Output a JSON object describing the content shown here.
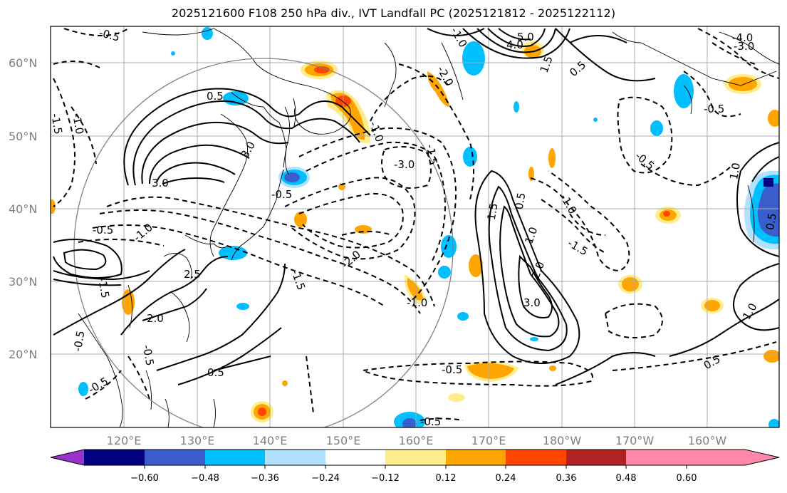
{
  "title": "2025121600 F108 250 hPa div., IVT Landfall PC (2025121812 - 2025122112)",
  "lat_labels": [
    "60°N",
    "50°N",
    "40°N",
    "30°N",
    "20°N"
  ],
  "lon_labels": [
    "120°E",
    "130°E",
    "140°E",
    "150°E",
    "160°E",
    "170°E",
    "180°W",
    "170°W",
    "160°W"
  ],
  "colorbar": {
    "ticks": [
      "−0.60",
      "−0.48",
      "−0.36",
      "−0.24",
      "−0.12",
      "0.12",
      "0.24",
      "0.36",
      "0.48",
      "0.60"
    ],
    "colors": [
      "#9933cc",
      "#000080",
      "#3a5fcd",
      "#00bfff",
      "#b0e2ff",
      "#ffffff",
      "#ffec8b",
      "#ffa500",
      "#ff4500",
      "#b22222",
      "#ff88aa"
    ]
  },
  "contour_labels": {
    "positive": [
      "5.0",
      "4.0",
      "3.0",
      "3.0",
      "2.0",
      "2.0",
      "1.5",
      "1.0",
      "1.0",
      "0.5",
      "0.5",
      "0.5",
      "0.5",
      "3.0",
      "1.5",
      "1.0",
      "0.5",
      "0.5",
      "2.5"
    ],
    "negative": [
      "-0.5",
      "-3.0",
      "-4.0",
      "-3.0",
      "-2.0",
      "-1.5",
      "-1.0",
      "-1.0",
      "-0.5",
      "-0.5",
      "-0.5",
      "-0.5",
      "-1.5",
      "-1.0",
      "-1.5",
      "-0.5",
      "-1.0",
      "-0.5",
      "-1.5",
      "-0.5",
      "-1.0",
      "-0.5",
      "-2.0",
      "-1.5",
      "-0.5",
      "-1.0"
    ]
  }
}
